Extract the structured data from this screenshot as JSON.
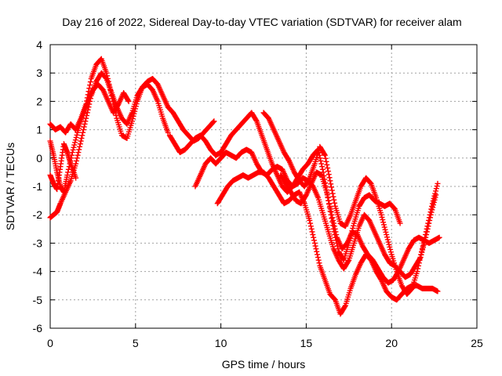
{
  "chart_data": {
    "type": "scatter",
    "title": "Day 216 of 2022, Sidereal Day-to-day VTEC variation (SDTVAR) for receiver alam",
    "xlabel": "GPS time / hours",
    "ylabel": "SDTVAR / TECUs",
    "xlim": [
      0,
      25
    ],
    "ylim": [
      -6,
      4
    ],
    "xticks": [
      0,
      5,
      10,
      15,
      20,
      25
    ],
    "yticks": [
      -6,
      -5,
      -4,
      -3,
      -2,
      -1,
      0,
      1,
      2,
      3,
      4
    ],
    "grid": true,
    "legend": "none",
    "marker": "+",
    "marker_color": "#ff0000",
    "series": [
      {
        "x": [
          0.0,
          0.3,
          0.6,
          0.9,
          1.2,
          1.5,
          1.8,
          2.1,
          2.4,
          2.7,
          3.0,
          3.3,
          3.6,
          3.9,
          4.2,
          4.5,
          4.8,
          5.1,
          5.4,
          5.7,
          6.0,
          6.3,
          6.6,
          6.9,
          7.2,
          7.5,
          7.8,
          8.1,
          8.4,
          8.7,
          9.0,
          9.3,
          9.6
        ],
        "y": [
          1.2,
          1.0,
          1.1,
          0.9,
          1.2,
          1.0,
          1.4,
          1.9,
          2.8,
          3.3,
          3.5,
          3.0,
          2.2,
          1.4,
          0.8,
          0.7,
          1.3,
          2.0,
          2.5,
          2.7,
          2.8,
          2.6,
          2.2,
          1.8,
          1.6,
          1.3,
          1.0,
          0.8,
          0.6,
          0.7,
          0.9,
          1.1,
          1.3
        ]
      },
      {
        "x": [
          0.0,
          0.2,
          0.4,
          0.6,
          0.9,
          1.2,
          1.5,
          1.8,
          2.1,
          2.4,
          2.7,
          3.0,
          3.3,
          3.6,
          3.9,
          4.2,
          4.5,
          4.8,
          5.1,
          5.4,
          5.7,
          6.0,
          6.3,
          6.6,
          6.9
        ],
        "y": [
          -2.1,
          -2.0,
          -1.9,
          -1.6,
          -1.2,
          -0.8,
          -0.2,
          0.6,
          1.4,
          2.2,
          2.7,
          3.0,
          2.8,
          2.3,
          1.8,
          1.4,
          1.2,
          1.6,
          2.2,
          2.5,
          2.6,
          2.4,
          2.0,
          1.4,
          0.9
        ]
      },
      {
        "x": [
          0.0,
          0.2,
          0.4,
          0.6,
          0.8,
          1.0,
          1.3,
          1.6,
          1.9,
          2.2,
          2.5,
          2.8,
          3.1,
          3.4,
          3.7,
          4.0,
          4.3,
          4.6
        ],
        "y": [
          0.6,
          0.1,
          -0.5,
          -1.0,
          -1.2,
          -0.6,
          0.2,
          0.9,
          1.5,
          2.0,
          2.4,
          2.6,
          2.4,
          2.0,
          1.6,
          1.9,
          2.3,
          2.0
        ]
      },
      {
        "x": [
          0.0,
          0.2,
          0.4,
          0.6,
          0.8,
          1.0,
          1.2,
          1.5
        ],
        "y": [
          -0.6,
          -0.9,
          -1.1,
          -0.3,
          0.5,
          0.2,
          -0.2,
          -0.7
        ]
      },
      {
        "x": [
          7.0,
          7.3,
          7.6,
          7.9,
          8.2,
          8.5,
          8.8,
          9.1,
          9.4,
          9.7,
          10.0,
          10.3,
          10.6,
          10.9,
          11.2,
          11.5,
          11.8,
          12.1,
          12.4,
          12.7,
          13.0,
          13.3,
          13.6,
          13.9,
          14.2,
          14.5,
          14.8,
          15.1,
          15.4,
          15.7,
          16.0,
          16.3,
          16.6,
          16.9,
          17.2,
          17.5,
          17.8,
          18.1,
          18.4,
          18.7,
          19.0,
          19.3,
          19.6,
          19.9,
          20.2,
          20.5
        ],
        "y": [
          0.8,
          0.5,
          0.2,
          0.3,
          0.5,
          0.7,
          0.8,
          0.6,
          0.3,
          0.1,
          0.2,
          0.5,
          0.8,
          1.0,
          1.2,
          1.4,
          1.6,
          1.3,
          0.8,
          0.3,
          -0.2,
          -0.6,
          -1.0,
          -1.2,
          -1.0,
          -0.7,
          -0.4,
          -0.2,
          0.1,
          0.3,
          -0.5,
          -1.5,
          -2.5,
          -3.3,
          -3.6,
          -3.0,
          -2.3,
          -1.7,
          -1.4,
          -1.3,
          -1.5,
          -1.6,
          -1.7,
          -1.6,
          -1.8,
          -2.3
        ]
      },
      {
        "x": [
          8.5,
          8.8,
          9.1,
          9.4,
          9.7,
          10.0,
          10.3,
          10.6,
          10.9,
          11.2,
          11.5,
          11.8,
          12.1,
          12.4,
          12.7,
          13.0,
          13.3,
          13.6,
          13.9,
          14.2,
          14.5,
          14.8,
          15.1,
          15.4,
          15.7,
          16.0,
          16.3,
          16.6,
          16.9,
          17.2,
          17.5,
          17.8,
          18.1,
          18.4,
          18.7,
          19.0,
          19.3,
          19.6,
          19.9,
          20.2,
          20.5,
          20.8,
          21.1,
          21.4,
          21.7,
          22.0,
          22.3,
          22.6
        ],
        "y": [
          -1.0,
          -0.6,
          -0.2,
          0.0,
          -0.2,
          0.0,
          0.2,
          0.1,
          0.0,
          0.2,
          0.3,
          0.2,
          -0.2,
          -0.5,
          -0.6,
          -0.4,
          -0.3,
          -0.4,
          -0.8,
          -1.0,
          -0.9,
          -0.7,
          -0.8,
          -1.0,
          -1.4,
          -2.0,
          -2.6,
          -3.2,
          -3.6,
          -3.9,
          -3.6,
          -3.0,
          -2.4,
          -2.0,
          -2.2,
          -2.6,
          -3.0,
          -3.4,
          -3.7,
          -3.8,
          -4.0,
          -4.2,
          -4.1,
          -3.8,
          -3.5,
          -2.8,
          -2.0,
          -1.3
        ]
      },
      {
        "x": [
          9.8,
          10.1,
          10.4,
          10.7,
          11.0,
          11.3,
          11.6,
          11.9,
          12.2,
          12.5,
          12.8,
          13.1,
          13.4,
          13.7,
          14.0,
          14.3,
          14.6,
          14.9,
          15.2,
          15.5,
          15.8,
          16.1,
          16.4,
          16.7,
          17.0,
          17.3,
          17.6,
          17.9,
          18.2,
          18.5,
          18.8,
          19.1,
          19.4,
          19.7,
          20.0,
          20.3,
          20.6,
          20.9,
          21.2,
          21.5,
          21.8,
          22.1,
          22.4,
          22.7
        ],
        "y": [
          -1.6,
          -1.3,
          -1.0,
          -0.8,
          -0.7,
          -0.6,
          -0.7,
          -0.6,
          -0.5,
          -0.5,
          -0.7,
          -1.0,
          -1.3,
          -1.6,
          -1.5,
          -1.3,
          -1.2,
          -1.6,
          -2.2,
          -3.0,
          -3.8,
          -4.3,
          -4.8,
          -5.0,
          -5.5,
          -5.2,
          -4.6,
          -4.1,
          -3.7,
          -3.4,
          -3.6,
          -4.0,
          -4.3,
          -4.7,
          -4.9,
          -5.0,
          -4.8,
          -4.6,
          -4.5,
          -4.5,
          -4.6,
          -4.6,
          -4.6,
          -4.7
        ]
      },
      {
        "x": [
          12.5,
          12.8,
          13.1,
          13.4,
          13.7,
          14.0,
          14.3,
          14.6,
          14.9,
          15.2,
          15.5,
          15.8,
          16.1,
          16.4,
          16.7,
          17.0,
          17.3,
          17.6,
          17.9,
          18.2,
          18.5,
          18.8,
          19.1,
          19.4,
          19.7,
          20.0,
          20.3,
          20.6,
          20.9,
          21.2,
          21.5,
          21.8,
          22.1,
          22.4,
          22.7
        ],
        "y": [
          1.6,
          1.4,
          1.0,
          0.6,
          0.2,
          -0.1,
          -0.5,
          -0.8,
          -1.0,
          -0.7,
          -0.2,
          0.4,
          0.1,
          -0.8,
          -1.7,
          -2.3,
          -2.4,
          -2.0,
          -1.5,
          -1.0,
          -0.7,
          -0.9,
          -1.4,
          -2.0,
          -2.7,
          -3.4,
          -4.0,
          -4.5,
          -4.8,
          -4.6,
          -4.0,
          -3.2,
          -2.4,
          -1.6,
          -0.9
        ]
      },
      {
        "x": [
          13.5,
          13.8,
          14.1,
          14.4,
          14.7,
          15.0,
          15.3,
          15.6,
          15.9,
          16.2,
          16.5,
          16.8,
          17.1,
          17.4,
          17.7,
          18.0,
          18.3,
          18.6,
          18.9,
          19.2,
          19.5,
          19.8,
          20.1,
          20.4,
          20.7,
          21.0,
          21.3,
          21.6,
          21.9,
          22.2,
          22.5,
          22.8
        ],
        "y": [
          -0.6,
          -0.9,
          -1.2,
          -1.5,
          -1.6,
          -1.3,
          -0.9,
          -0.5,
          -0.6,
          -1.2,
          -2.0,
          -2.8,
          -3.2,
          -3.0,
          -2.6,
          -2.7,
          -3.1,
          -3.4,
          -3.6,
          -3.9,
          -4.2,
          -4.4,
          -4.3,
          -4.0,
          -3.6,
          -3.2,
          -2.9,
          -2.8,
          -2.9,
          -3.0,
          -2.9,
          -2.8
        ]
      }
    ]
  }
}
